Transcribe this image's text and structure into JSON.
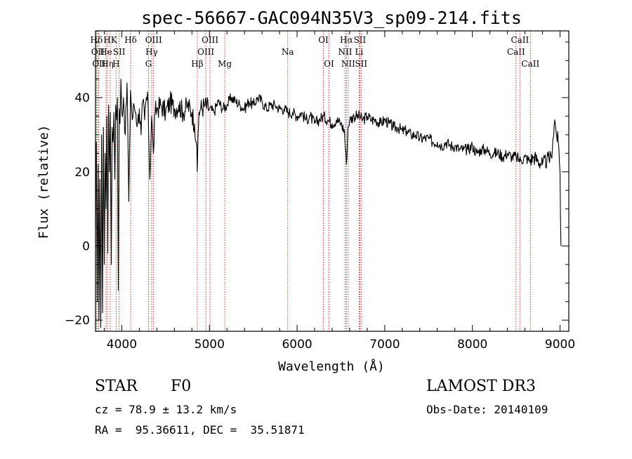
{
  "chart_data": {
    "type": "line",
    "title": "spec-56667-GAC094N35V3_sp09-214.fits",
    "xlabel": "Wavelength (Å)",
    "ylabel": "Flux (relative)",
    "xlim": [
      3700,
      9100
    ],
    "ylim": [
      -23,
      58
    ],
    "x_ticks": [
      {
        "value": 4000,
        "label": "4000"
      },
      {
        "value": 5000,
        "label": "5000"
      },
      {
        "value": 6000,
        "label": "6000"
      },
      {
        "value": 7000,
        "label": "7000"
      },
      {
        "value": 8000,
        "label": "8000"
      },
      {
        "value": 9000,
        "label": "9000"
      }
    ],
    "y_ticks": [
      {
        "value": -20,
        "label": "−20"
      },
      {
        "value": 0,
        "label": "0"
      },
      {
        "value": 20,
        "label": "20"
      },
      {
        "value": 40,
        "label": "40"
      }
    ],
    "series": [
      {
        "name": "flux",
        "color": "#000000",
        "x": [
          3700,
          3710,
          3720,
          3730,
          3740,
          3750,
          3760,
          3770,
          3780,
          3790,
          3800,
          3810,
          3820,
          3830,
          3840,
          3850,
          3860,
          3870,
          3880,
          3890,
          3900,
          3910,
          3920,
          3930,
          3940,
          3950,
          3960,
          3970,
          3980,
          3990,
          4000,
          4020,
          4040,
          4060,
          4080,
          4100,
          4120,
          4140,
          4160,
          4180,
          4200,
          4220,
          4240,
          4260,
          4280,
          4300,
          4320,
          4340,
          4360,
          4380,
          4400,
          4450,
          4500,
          4550,
          4600,
          4650,
          4700,
          4750,
          4800,
          4830,
          4850,
          4861,
          4870,
          4880,
          4900,
          4950,
          5000,
          5050,
          5100,
          5150,
          5200,
          5250,
          5300,
          5350,
          5400,
          5450,
          5500,
          5550,
          5600,
          5650,
          5700,
          5750,
          5800,
          5850,
          5900,
          5950,
          6000,
          6050,
          6100,
          6150,
          6200,
          6250,
          6300,
          6350,
          6400,
          6450,
          6500,
          6540,
          6563,
          6580,
          6600,
          6650,
          6700,
          6750,
          6800,
          6850,
          6900,
          6950,
          7000,
          7050,
          7100,
          7150,
          7200,
          7250,
          7300,
          7350,
          7400,
          7450,
          7500,
          7550,
          7600,
          7650,
          7700,
          7750,
          7800,
          7850,
          7900,
          7950,
          8000,
          8050,
          8100,
          8150,
          8200,
          8250,
          8300,
          8350,
          8400,
          8450,
          8500,
          8550,
          8600,
          8650,
          8700,
          8750,
          8800,
          8850,
          8900,
          8920,
          8940,
          8960,
          8980,
          9000,
          9010
        ],
        "y": [
          5,
          28,
          -15,
          22,
          -20,
          18,
          -22,
          30,
          -18,
          32,
          -5,
          25,
          10,
          35,
          -2,
          38,
          20,
          36,
          -5,
          32,
          28,
          36,
          18,
          38,
          34,
          40,
          -12,
          37,
          33,
          45,
          36,
          40,
          30,
          44,
          12,
          42,
          34,
          38,
          36,
          33,
          37,
          30,
          39,
          34,
          40,
          38,
          18,
          35,
          25,
          36,
          37,
          38,
          36,
          39,
          37,
          38,
          36,
          38,
          36,
          33,
          28,
          20,
          30,
          36,
          37,
          38,
          37,
          36,
          39,
          37,
          38,
          40,
          39,
          38,
          37,
          39,
          38,
          40,
          39,
          37,
          38,
          38,
          37,
          37,
          36,
          36,
          35,
          36,
          34,
          35,
          33,
          34,
          35,
          34,
          33,
          34,
          33,
          31,
          22,
          32,
          34,
          35,
          35,
          34,
          35,
          34,
          34,
          33,
          34,
          33,
          32,
          32,
          31,
          31,
          30,
          30,
          29,
          29,
          29,
          28,
          28,
          27,
          28,
          27,
          27,
          26,
          26,
          26,
          27,
          25,
          26,
          26,
          25,
          25,
          25,
          24,
          25,
          24,
          24,
          23,
          24,
          23,
          24,
          23,
          22,
          23,
          24,
          29,
          34,
          30,
          28,
          20,
          0
        ]
      }
    ],
    "line_markers": [
      {
        "name": "Hδ",
        "wavelength": 3711,
        "row": 1
      },
      {
        "name": "OII",
        "wavelength": 3727,
        "row": 2
      },
      {
        "name": "OII",
        "wavelength": 3739,
        "row": 3
      },
      {
        "name": "He",
        "wavelength": 3820,
        "row": 2
      },
      {
        "name": "Hη",
        "wavelength": 3836,
        "row": 3
      },
      {
        "name": "HK",
        "wavelength": 3868,
        "row": 1
      },
      {
        "name": "H",
        "wavelength": 3935,
        "row": 3
      },
      {
        "name": "SII",
        "wavelength": 3970,
        "row": 2
      },
      {
        "name": "Hδ",
        "wavelength": 4101,
        "row": 1
      },
      {
        "name": "G",
        "wavelength": 4305,
        "row": 3
      },
      {
        "name": "Hγ",
        "wavelength": 4341,
        "row": 2
      },
      {
        "name": "OIII",
        "wavelength": 4363,
        "row": 1
      },
      {
        "name": "Hβ",
        "wavelength": 4861,
        "row": 3
      },
      {
        "name": "OIII",
        "wavelength": 4959,
        "row": 2
      },
      {
        "name": "OIII",
        "wavelength": 5007,
        "row": 1
      },
      {
        "name": "Mg",
        "wavelength": 5175,
        "row": 3
      },
      {
        "name": "Na",
        "wavelength": 5893,
        "row": 2
      },
      {
        "name": "OI",
        "wavelength": 6300,
        "row": 1
      },
      {
        "name": "OI",
        "wavelength": 6364,
        "row": 3
      },
      {
        "name": "NII",
        "wavelength": 6548,
        "row": 2
      },
      {
        "name": "Hα",
        "wavelength": 6563,
        "row": 1
      },
      {
        "name": "NII",
        "wavelength": 6583,
        "row": 3
      },
      {
        "name": "Li",
        "wavelength": 6708,
        "row": 2
      },
      {
        "name": "SII",
        "wavelength": 6716,
        "row": 1
      },
      {
        "name": "SII",
        "wavelength": 6731,
        "row": 3
      },
      {
        "name": "CaII",
        "wavelength": 8498,
        "row": 2
      },
      {
        "name": "CaII",
        "wavelength": 8542,
        "row": 1
      },
      {
        "name": "CaII",
        "wavelength": 8662,
        "row": 3
      }
    ]
  },
  "info": {
    "object_class": "STAR",
    "subclass": "F0",
    "redshift": "cz = 78.9 ± 13.2 km/s",
    "coords": "RA =  95.36611, DEC =  35.51871",
    "survey": "LAMOST DR3",
    "obs_date": "Obs-Date: 20140109"
  },
  "colors": {
    "marker_line": "#c0392b",
    "axis": "#000000",
    "spectrum": "#000000"
  }
}
